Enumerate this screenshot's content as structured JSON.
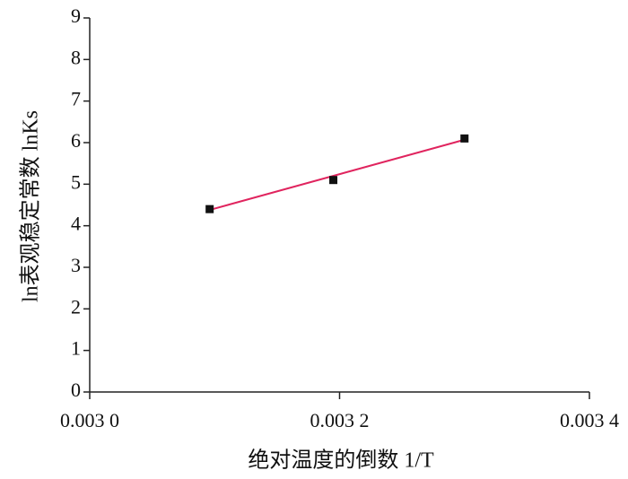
{
  "chart_data": {
    "type": "scatter",
    "x_label": "绝对温度的倒数 1/T",
    "y_label": "ln表观稳定常数 lnKs",
    "x": [
      0.003096,
      0.003195,
      0.0033
    ],
    "values": [
      4.4,
      5.1,
      6.1
    ],
    "color": "#111111",
    "fit": {
      "x": [
        0.003096,
        0.0033
      ],
      "values": [
        4.38,
        6.07
      ],
      "color": "#e0245e"
    },
    "xlim": [
      0.003,
      0.0034
    ],
    "xticks": [
      {
        "value": 0.003,
        "label": "0.003 0"
      },
      {
        "value": 0.0032,
        "label": "0.003 2"
      },
      {
        "value": 0.0034,
        "label": "0.003 4"
      }
    ],
    "ylim": [
      0,
      9
    ],
    "yticks": [
      0,
      1,
      2,
      3,
      4,
      5,
      6,
      7,
      8,
      9
    ],
    "grid": false
  }
}
